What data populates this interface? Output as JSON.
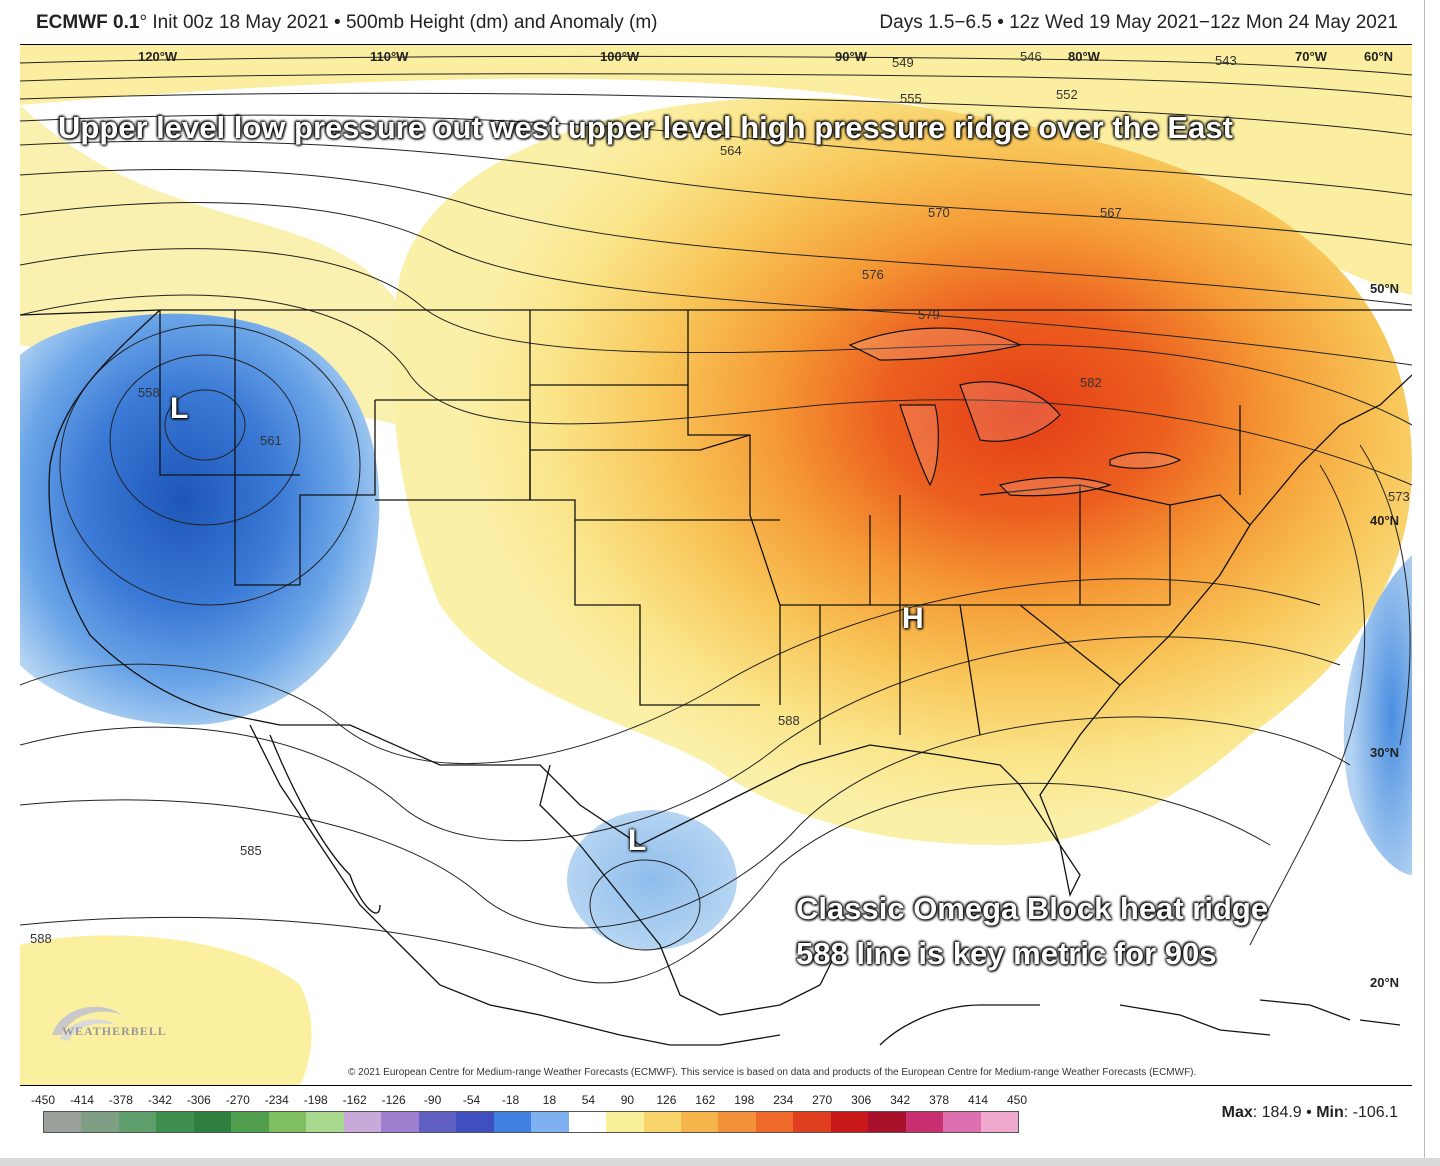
{
  "header": {
    "model": "ECMWF 0.1",
    "degree": "°",
    "init": "Init 00z 18 May 2021",
    "separator": "•",
    "field": "500mb Height (dm) and Anomaly (m)",
    "valid": "Days 1.5−6.5 • 12z Wed 19 May 2021−12z Mon 24 May 2021"
  },
  "longitude_labels": [
    "120°W",
    "110°W",
    "100°W",
    "90°W",
    "80°W",
    "70°W",
    "60°N"
  ],
  "latitude_labels": [
    "50°N",
    "40°N",
    "30°N",
    "20°N"
  ],
  "contour_labels": [
    "549",
    "546",
    "543",
    "555",
    "552",
    "564",
    "570",
    "567",
    "576",
    "579",
    "582",
    "558",
    "561",
    "573",
    "588",
    "585",
    "588"
  ],
  "annotations": {
    "top": "Upper level low pressure out west upper level high pressure ridge over the East",
    "bottom_line1": "Classic Omega Block heat ridge",
    "bottom_line2": "588 line is key metric for 90s"
  },
  "systems": {
    "low_west": "L",
    "low_gulf": "L",
    "high_east": "H"
  },
  "logo": {
    "text": "WEATHERBELL"
  },
  "copyright": "© 2021 European Centre for Medium-range Weather Forecasts (ECMWF). This service is based on data and products of the European Centre for Medium-range Weather Forecasts (ECMWF).",
  "colorbar": {
    "ticks": [
      "-450",
      "-414",
      "-378",
      "-342",
      "-306",
      "-270",
      "-234",
      "-198",
      "-162",
      "-126",
      "-90",
      "-54",
      "-18",
      "18",
      "54",
      "90",
      "126",
      "162",
      "198",
      "234",
      "270",
      "306",
      "342",
      "378",
      "414",
      "450"
    ],
    "colors": [
      "#9aa09a",
      "#7f9f85",
      "#5f9f6c",
      "#3f8f4f",
      "#2f7f3f",
      "#4f9f4f",
      "#7fbf5f",
      "#a9d98f",
      "#c9a9d9",
      "#9f7fcf",
      "#5f5fbf",
      "#3f4fbf",
      "#3f7fdf",
      "#7fb0ef",
      "#ffffff",
      "#fbf09a",
      "#f7d56a",
      "#f5b54a",
      "#f3903a",
      "#ef6a2a",
      "#df3f1f",
      "#c9181a",
      "#a9102a",
      "#c9306f",
      "#df70af",
      "#efa9cf"
    ],
    "max_label": "Max",
    "max_value": "184.9",
    "min_label": "Min",
    "min_value": "-106.1"
  },
  "colors": {
    "ridge_core": "#e8401a",
    "ridge_mid": "#f3902f",
    "ridge_outer": "#f7c75a",
    "ridge_edge": "#faeb8e",
    "trough_core": "#1f5cc0",
    "trough_mid": "#4d8fe0",
    "trough_edge": "#a8cdf2"
  }
}
